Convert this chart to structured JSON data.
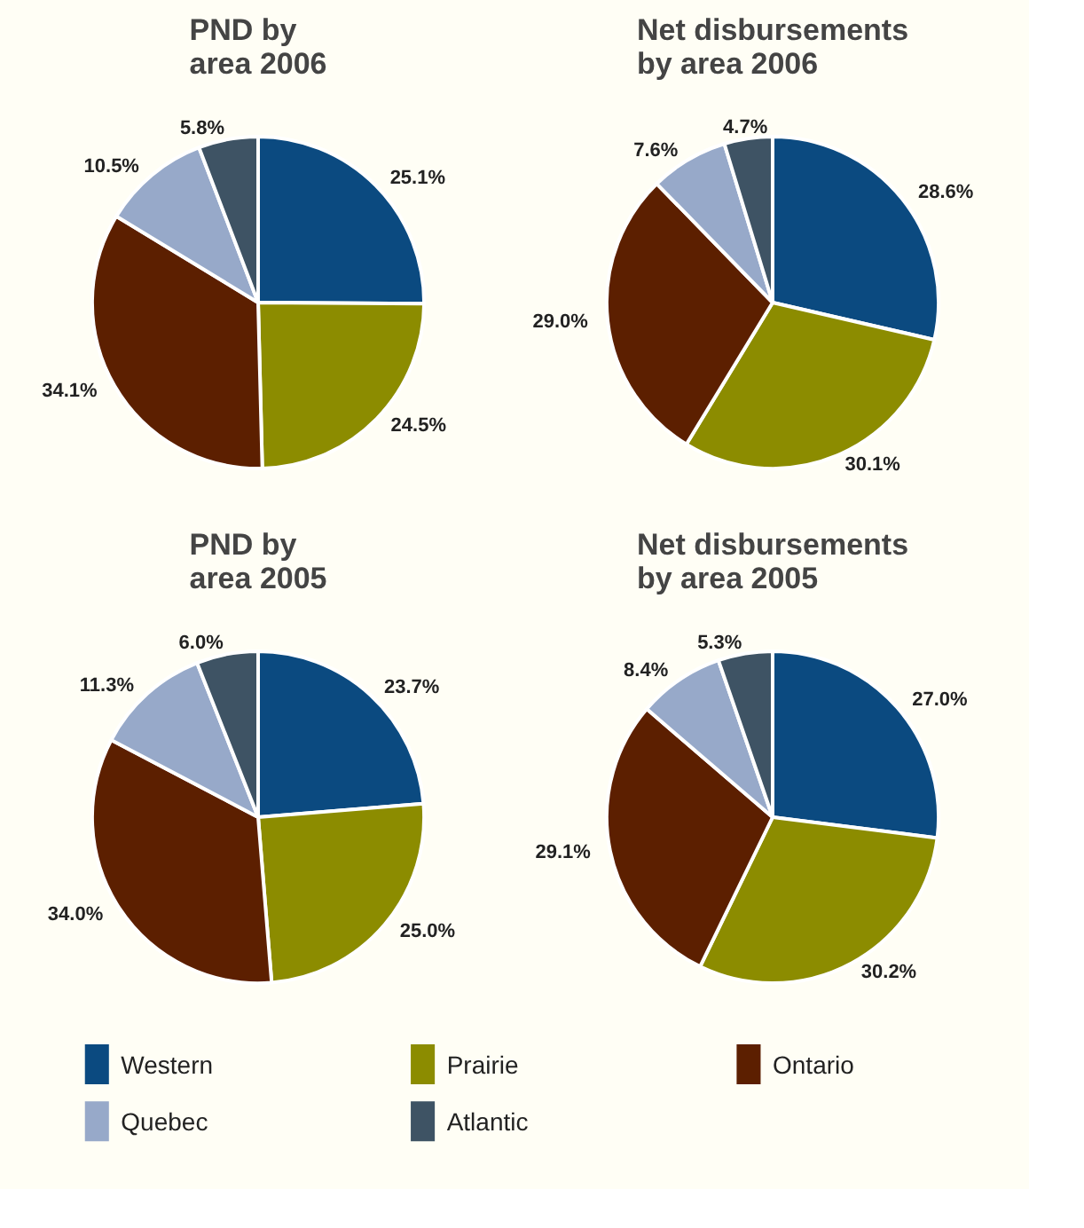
{
  "chart_data": [
    {
      "type": "pie",
      "title": "PND by\narea 2006",
      "categories": [
        "Western",
        "Prairie",
        "Ontario",
        "Quebec",
        "Atlantic"
      ],
      "values": [
        25.1,
        24.5,
        34.1,
        10.5,
        5.8
      ],
      "value_labels": [
        "25.1%",
        "24.5%",
        "34.1%",
        "10.5%",
        "5.8%"
      ],
      "colors": [
        "#0b4a80",
        "#8c8c00",
        "#5c1f00",
        "#97a9c9",
        "#3e5364"
      ],
      "legend": "bottom"
    },
    {
      "type": "pie",
      "title": "Net disbursements\nby area 2006",
      "categories": [
        null,
        null,
        null,
        null,
        null
      ],
      "values": [
        28.6,
        30.1,
        29.0,
        7.6,
        4.7
      ],
      "value_labels": [
        "28.6%",
        "30.1%",
        "29.0%",
        "7.6%",
        "4.7%"
      ],
      "colors": [
        "#0b4a80",
        "#8c8c00",
        "#5c1f00",
        "#97a9c9",
        "#3e5364"
      ]
    },
    {
      "type": "pie",
      "title": "PND by\narea 2005",
      "categories": [
        null,
        null,
        null,
        null,
        null
      ],
      "values": [
        23.7,
        25.0,
        34.0,
        11.3,
        6.0
      ],
      "value_labels": [
        "23.7%",
        "25.0%",
        "34.0%",
        "11.3%",
        "6.0%"
      ],
      "colors": [
        "#0b4a80",
        "#8c8c00",
        "#5c1f00",
        "#97a9c9",
        "#3e5364"
      ]
    },
    {
      "type": "pie",
      "title": "Net disbursements\nby area 2005",
      "categories": [
        null,
        null,
        null,
        null,
        null
      ],
      "values": [
        27.0,
        30.2,
        29.1,
        8.4,
        5.3
      ],
      "value_labels": [
        "27.0%",
        "30.2%",
        "29.1%",
        "8.4%",
        "5.3%"
      ],
      "colors": [
        "#0b4a80",
        "#8c8c00",
        "#5c1f00",
        "#97a9c9",
        "#3e5364"
      ]
    }
  ]
}
